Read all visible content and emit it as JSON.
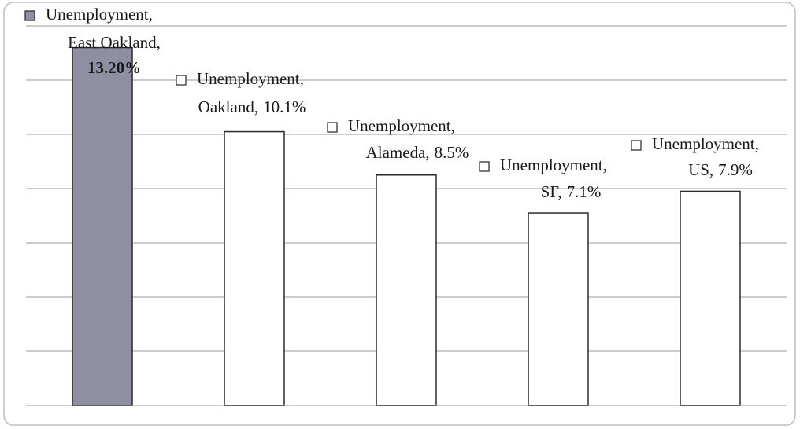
{
  "chart_data": {
    "type": "bar",
    "categories": [
      "East Oakland",
      "Oakland",
      "Alameda",
      "SF",
      "US"
    ],
    "series": [
      {
        "name": "Unemployment",
        "values": [
          13.2,
          10.1,
          8.5,
          7.1,
          7.9
        ],
        "value_labels": [
          "13.20%",
          "10.1%",
          "8.5%",
          "7.1%",
          "7.9%"
        ],
        "colors": [
          "#8e8fa3",
          "#ffffff",
          "#ffffff",
          "#ffffff",
          "#ffffff"
        ]
      }
    ],
    "label_separator": ",",
    "ylim": [
      0,
      14
    ],
    "yticks": [
      0,
      2,
      4,
      6,
      8,
      10,
      12,
      14
    ],
    "grid": true
  }
}
